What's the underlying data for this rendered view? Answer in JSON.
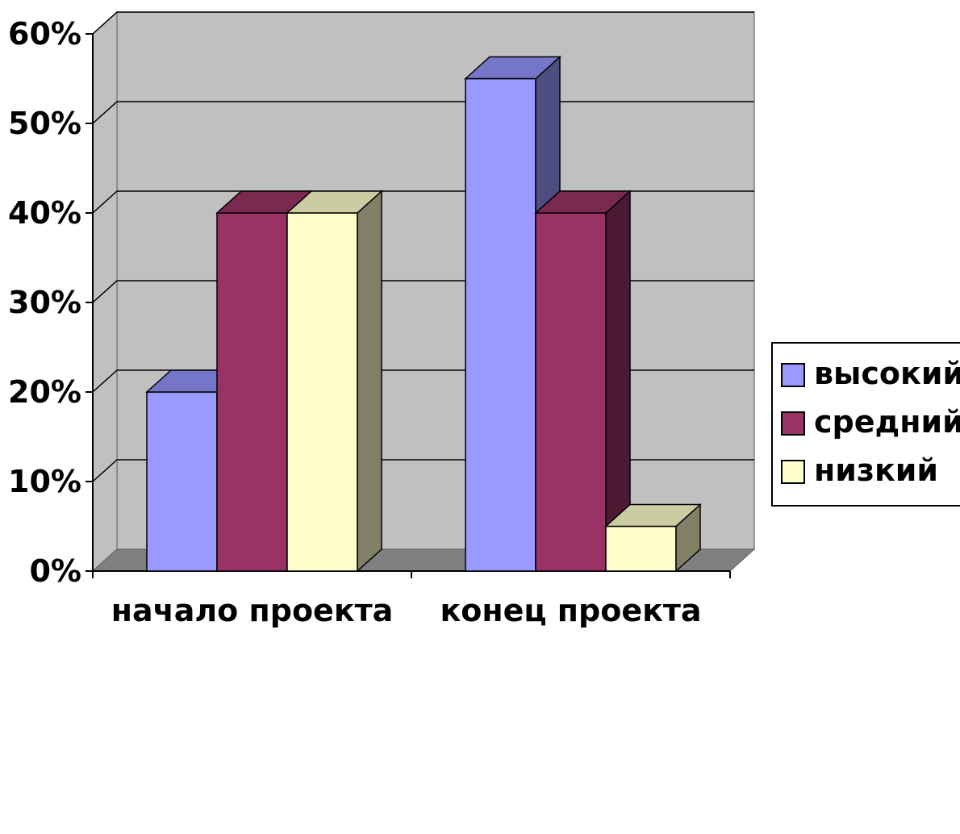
{
  "chart_data": {
    "type": "bar",
    "variant": "3d-clustered-column",
    "categories": [
      "начало проекта",
      "конец проекта"
    ],
    "series": [
      {
        "name": "высокий",
        "values": [
          20,
          55
        ],
        "color": "#9999ff",
        "side_color": "#4d4d80",
        "top_color": "#7676c8"
      },
      {
        "name": "средний",
        "values": [
          40,
          40
        ],
        "color": "#993366",
        "side_color": "#4d1a33",
        "top_color": "#7a2951"
      },
      {
        "name": "низкий",
        "values": [
          40,
          5
        ],
        "color": "#ffffcc",
        "side_color": "#808066",
        "top_color": "#cccca3"
      }
    ],
    "y_ticks": [
      "0%",
      "10%",
      "20%",
      "30%",
      "40%",
      "50%",
      "60%"
    ],
    "ylim": [
      0,
      60
    ],
    "y_unit": "%",
    "grid": true,
    "legend_position": "right",
    "wall_color": "#c0c0c0",
    "floor_color": "#808080"
  }
}
